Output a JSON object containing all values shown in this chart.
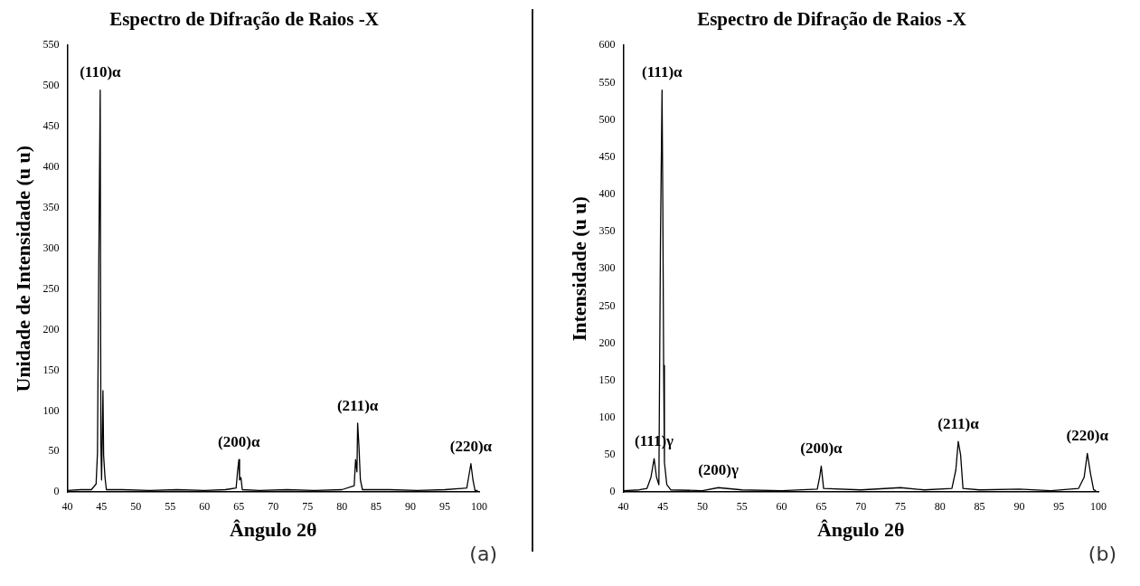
{
  "chart_data": [
    {
      "type": "line",
      "title": "Espectro de Difração de Raios -X",
      "xlabel": "Ângulo 2θ",
      "ylabel": "Unidade de Intensidade (u u)",
      "x": [
        40,
        42,
        43.5,
        44.2,
        44.4,
        44.6,
        44.8,
        44.9,
        45.0,
        45.2,
        45.3,
        45.5,
        45.7,
        48,
        52,
        56,
        60,
        63,
        64.6,
        64.8,
        65.0,
        65.1,
        65.3,
        65.5,
        68,
        72,
        76,
        80,
        81.8,
        82.0,
        82.2,
        82.3,
        82.5,
        82.7,
        83,
        87,
        91,
        95,
        98.2,
        98.5,
        98.8,
        99.1,
        99.4,
        99.8
      ],
      "series": [
        {
          "color": "#000000",
          "values": [
            2,
            3,
            3,
            10,
            48,
            290,
            495,
            60,
            15,
            125,
            45,
            18,
            3,
            3,
            2,
            3,
            2,
            3,
            5,
            25,
            40,
            15,
            18,
            3,
            2,
            3,
            2,
            3,
            8,
            40,
            25,
            85,
            55,
            15,
            3,
            3,
            2,
            3,
            5,
            20,
            35,
            15,
            2,
            2
          ]
        }
      ],
      "xlim": [
        40,
        100
      ],
      "xticks": [
        40,
        45,
        50,
        55,
        60,
        65,
        70,
        75,
        80,
        85,
        90,
        95,
        100
      ],
      "ylim": [
        0,
        550
      ],
      "yticks": [
        0,
        50,
        100,
        150,
        200,
        250,
        300,
        350,
        400,
        450,
        500,
        550
      ],
      "grid": false,
      "legend": false,
      "marker": "none",
      "line_style": "solid",
      "annotations": [
        {
          "text": "(110)α",
          "x": 44.8,
          "y": 495
        },
        {
          "text": "(200)α",
          "x": 65.0,
          "y": 40
        },
        {
          "text": "(211)α",
          "x": 82.3,
          "y": 85
        },
        {
          "text": "(220)α",
          "x": 98.8,
          "y": 35
        },
        "(a)"
      ]
    },
    {
      "type": "line",
      "title": "Espectro de Difração de Raios -X",
      "xlabel": "Ângulo 2θ",
      "ylabel": "Intensidade (u u)",
      "x": [
        40,
        42,
        43,
        43.5,
        43.9,
        44.2,
        44.5,
        44.7,
        44.9,
        45.0,
        45.1,
        45.2,
        45.5,
        46,
        50,
        52,
        55,
        60,
        64.5,
        64.8,
        65,
        65.3,
        70,
        75,
        78,
        81.5,
        82,
        82.3,
        82.6,
        82.9,
        85,
        90,
        94,
        97.5,
        98.2,
        98.6,
        99,
        99.4,
        99.7
      ],
      "series": [
        {
          "color": "#000000",
          "values": [
            2,
            3,
            5,
            20,
            45,
            20,
            10,
            340,
            540,
            380,
            170,
            40,
            10,
            3,
            2,
            6,
            3,
            2,
            4,
            20,
            35,
            5,
            3,
            6,
            3,
            5,
            30,
            68,
            50,
            5,
            3,
            4,
            2,
            5,
            20,
            52,
            25,
            3,
            2
          ]
        }
      ],
      "xlim": [
        40,
        100
      ],
      "xticks": [
        40,
        45,
        50,
        55,
        60,
        65,
        70,
        75,
        80,
        85,
        90,
        95,
        100
      ],
      "ylim": [
        0,
        600
      ],
      "yticks": [
        0,
        50,
        100,
        150,
        200,
        250,
        300,
        350,
        400,
        450,
        500,
        550,
        600
      ],
      "grid": false,
      "legend": false,
      "marker": "none",
      "line_style": "solid",
      "annotations": [
        {
          "text": "(111)γ",
          "x": 43.9,
          "y": 45
        },
        {
          "text": "(111)α",
          "x": 44.9,
          "y": 540
        },
        {
          "text": "(200)γ",
          "x": 52,
          "y": 6
        },
        {
          "text": "(200)α",
          "x": 65,
          "y": 35
        },
        {
          "text": "(211)α",
          "x": 82.3,
          "y": 68
        },
        {
          "text": "(220)α",
          "x": 98.6,
          "y": 52
        },
        "(b)"
      ]
    }
  ]
}
